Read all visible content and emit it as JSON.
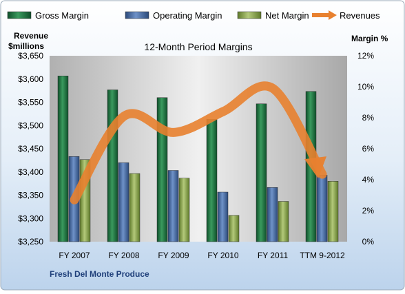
{
  "chart_data": {
    "type": "bar",
    "title": "12-Month Period Margins",
    "company": "Fresh Del Monte Produce",
    "categories": [
      "FY 2007",
      "FY 2008",
      "FY 2009",
      "FY 2010",
      "FY 2011",
      "TTM 9-2012"
    ],
    "left_axis": {
      "label_line1": "Revenue",
      "label_line2": "$millions",
      "range": [
        3250,
        3650
      ],
      "ticks": [
        "$3,250",
        "$3,300",
        "$3,350",
        "$3,400",
        "$3,450",
        "$3,500",
        "$3,550",
        "$3,600",
        "$3,650"
      ]
    },
    "right_axis": {
      "label": "Margin %",
      "range": [
        0,
        12
      ],
      "ticks": [
        "0%",
        "2%",
        "4%",
        "6%",
        "8%",
        "10%",
        "12%"
      ]
    },
    "series": [
      {
        "name": "Gross Margin",
        "axis": "right",
        "color": "#1f7a44",
        "values": [
          10.7,
          9.8,
          9.3,
          7.9,
          8.9,
          9.7
        ]
      },
      {
        "name": "Operating Margin",
        "axis": "right",
        "color": "#4a6fa8",
        "values": [
          5.5,
          5.1,
          4.6,
          3.2,
          3.5,
          4.3
        ]
      },
      {
        "name": "Net Margin",
        "axis": "right",
        "color": "#8fa84f",
        "values": [
          5.3,
          4.4,
          4.1,
          1.7,
          2.6,
          3.9
        ]
      },
      {
        "name": "Revenues",
        "axis": "left",
        "color": "#e8812f",
        "type": "line",
        "values": [
          3340,
          3520,
          3485,
          3530,
          3580,
          3395
        ]
      }
    ],
    "legend_position": "top",
    "grid": false
  }
}
